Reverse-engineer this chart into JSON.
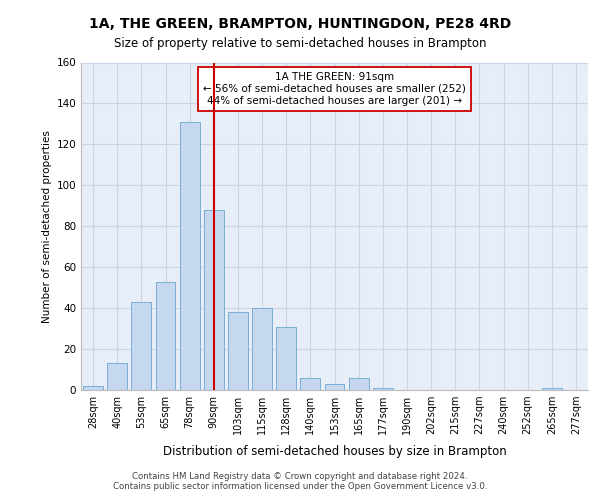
{
  "title1": "1A, THE GREEN, BRAMPTON, HUNTINGDON, PE28 4RD",
  "title2": "Size of property relative to semi-detached houses in Brampton",
  "xlabel": "Distribution of semi-detached houses by size in Brampton",
  "ylabel": "Number of semi-detached properties",
  "categories": [
    "28sqm",
    "40sqm",
    "53sqm",
    "65sqm",
    "78sqm",
    "90sqm",
    "103sqm",
    "115sqm",
    "128sqm",
    "140sqm",
    "153sqm",
    "165sqm",
    "177sqm",
    "190sqm",
    "202sqm",
    "215sqm",
    "227sqm",
    "240sqm",
    "252sqm",
    "265sqm",
    "277sqm"
  ],
  "values": [
    2,
    13,
    43,
    53,
    131,
    88,
    38,
    40,
    31,
    6,
    3,
    6,
    1,
    0,
    0,
    0,
    0,
    0,
    0,
    1,
    0
  ],
  "bar_color": "#c5d8f0",
  "bar_edge_color": "#7baed4",
  "vline_x_idx": 5,
  "vline_color": "#cc0000",
  "annotation_text": "1A THE GREEN: 91sqm\n← 56% of semi-detached houses are smaller (252)\n44% of semi-detached houses are larger (201) →",
  "annotation_box_color": "#ffffff",
  "annotation_box_edge_color": "#cc0000",
  "ylim": [
    0,
    160
  ],
  "yticks": [
    0,
    20,
    40,
    60,
    80,
    100,
    120,
    140,
    160
  ],
  "grid_color": "#c8d4e8",
  "bg_color": "#e8eef8",
  "footer1": "Contains HM Land Registry data © Crown copyright and database right 2024.",
  "footer2": "Contains public sector information licensed under the Open Government Licence v3.0."
}
